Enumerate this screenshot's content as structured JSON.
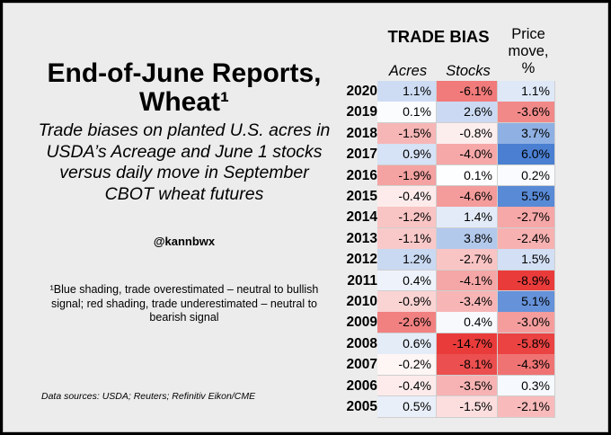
{
  "title": "End-of-June Reports, Wheat¹",
  "subtitle": "Trade biases on planted U.S. acres in USDA’s Acreage and June 1 stocks versus daily move in September CBOT wheat futures",
  "handle": "@kannbwx",
  "footnote": "¹Blue shading, trade overestimated – neutral to bullish signal; red shading, trade underestimated – neutral to bearish signal",
  "sources": "Data sources: USDA; Reuters; Refinitiv Eikon/CME",
  "headers": {
    "trade_bias": "TRADE BIAS",
    "acres": "Acres",
    "stocks": "Stocks",
    "price_move": "Price move, %"
  },
  "colors": {
    "blue": "#4a7fd2",
    "red": "#ea3b3b",
    "neutral": "#ffffff"
  },
  "chart_data": {
    "type": "table",
    "columns": [
      "Acres",
      "Stocks",
      "Price move, %"
    ],
    "rows": [
      {
        "year": "2020",
        "acres": 1.1,
        "stocks": -6.1,
        "price": 1.1
      },
      {
        "year": "2019",
        "acres": 0.1,
        "stocks": 2.6,
        "price": -3.6
      },
      {
        "year": "2018",
        "acres": -1.5,
        "stocks": -0.8,
        "price": 3.7
      },
      {
        "year": "2017",
        "acres": 0.9,
        "stocks": -4.0,
        "price": 6.0
      },
      {
        "year": "2016",
        "acres": -1.9,
        "stocks": 0.1,
        "price": 0.2
      },
      {
        "year": "2015",
        "acres": -0.4,
        "stocks": -4.6,
        "price": 5.5
      },
      {
        "year": "2014",
        "acres": -1.2,
        "stocks": 1.4,
        "price": -2.7
      },
      {
        "year": "2013",
        "acres": -1.1,
        "stocks": 3.8,
        "price": -2.4
      },
      {
        "year": "2012",
        "acres": 1.2,
        "stocks": -2.7,
        "price": 1.5
      },
      {
        "year": "2011",
        "acres": 0.4,
        "stocks": -4.1,
        "price": -8.9
      },
      {
        "year": "2010",
        "acres": -0.9,
        "stocks": -3.4,
        "price": 5.1
      },
      {
        "year": "2009",
        "acres": -2.6,
        "stocks": 0.4,
        "price": -3.0
      },
      {
        "year": "2008",
        "acres": 0.6,
        "stocks": -14.7,
        "price": -5.8
      },
      {
        "year": "2007",
        "acres": -0.2,
        "stocks": -8.1,
        "price": -4.3
      },
      {
        "year": "2006",
        "acres": -0.4,
        "stocks": -3.5,
        "price": 0.3
      },
      {
        "year": "2005",
        "acres": 0.5,
        "stocks": -1.5,
        "price": -2.1
      }
    ]
  }
}
